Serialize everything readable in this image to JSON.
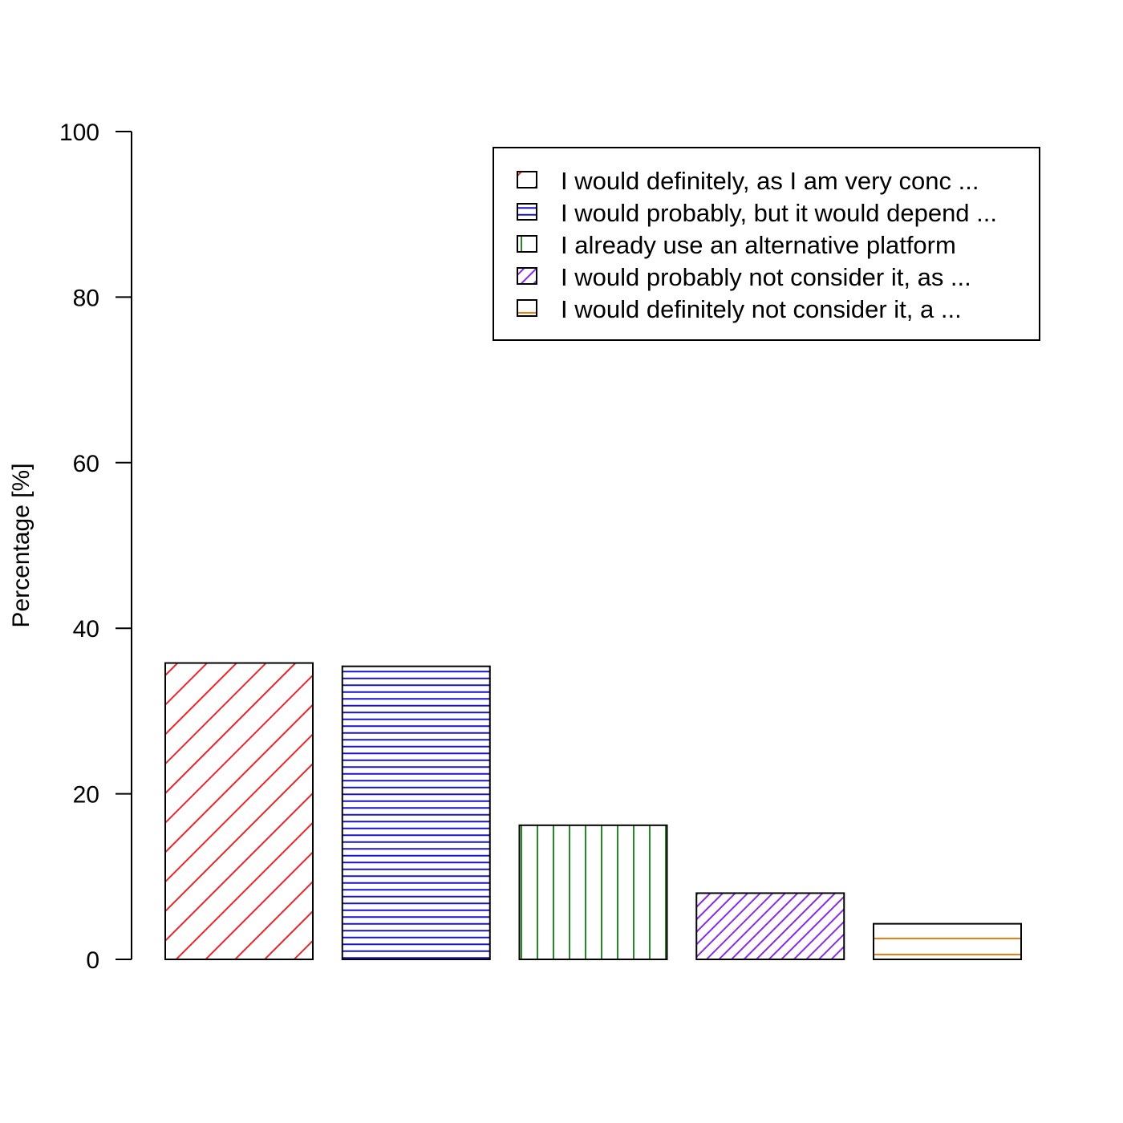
{
  "chart_data": {
    "type": "bar",
    "title": "",
    "xlabel": "",
    "ylabel": "Percentage [%]",
    "ylim": [
      0,
      100
    ],
    "yticks": [
      0,
      20,
      40,
      60,
      80,
      100
    ],
    "grid": false,
    "legend_position": "top-right",
    "categories": [
      "I would definitely, as I am very conc ...",
      "I would probably, but it would depend ...",
      "I already use an alternative platform",
      "I would probably not consider it, as  ...",
      "I would definitely not consider it, a ..."
    ],
    "values": [
      35.8,
      35.4,
      16.2,
      8.0,
      4.3
    ],
    "colors": [
      "#e8262b",
      "#1a14c8",
      "#228b22",
      "#8a2be2",
      "#ee7f0e"
    ],
    "fill_patterns": [
      "diagonal-wide",
      "horizontal-dense",
      "vertical",
      "diagonal-dense",
      "horizontal-sparse"
    ]
  }
}
